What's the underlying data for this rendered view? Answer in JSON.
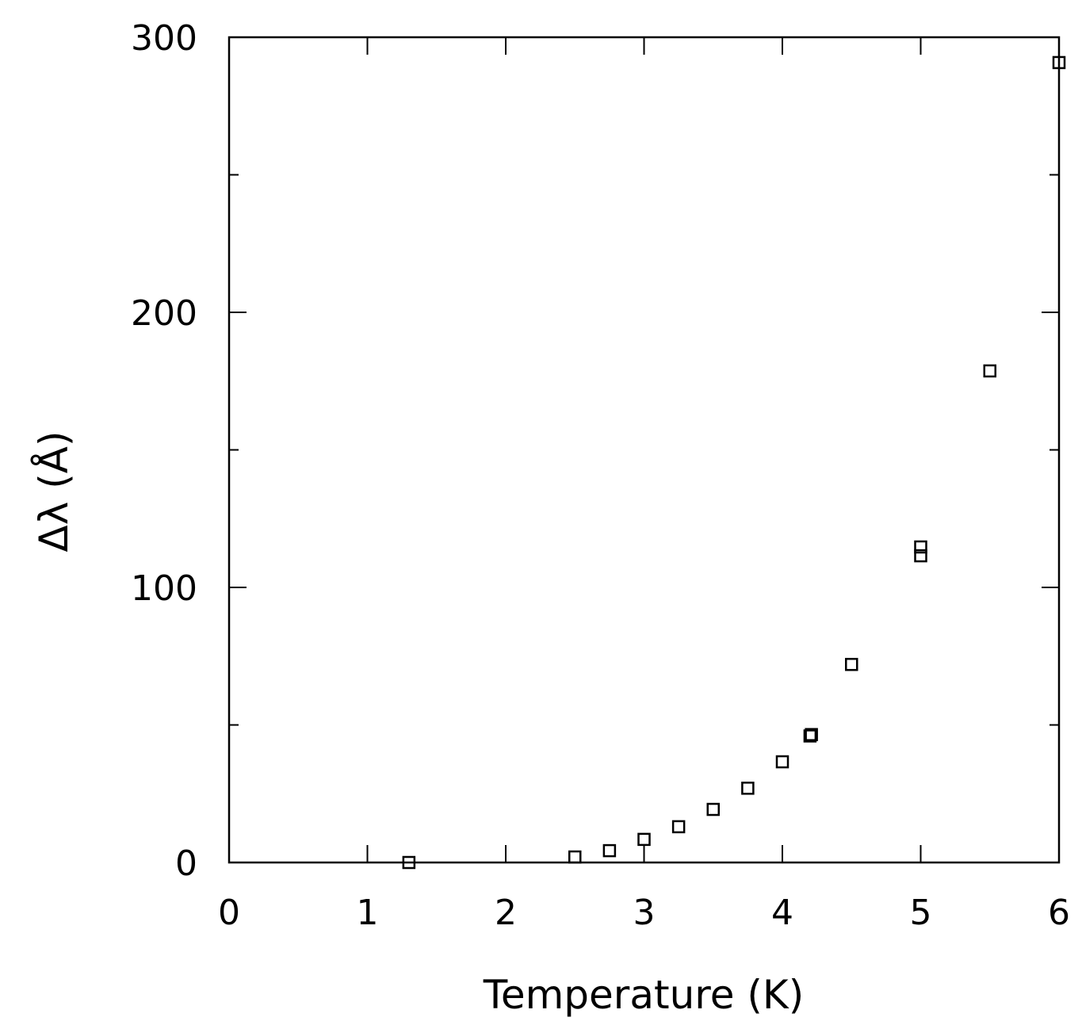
{
  "chart_data": {
    "type": "scatter",
    "title": "",
    "xlabel": "Temperature (K)",
    "ylabel": "Δλ (Å)",
    "xlim": [
      0,
      6
    ],
    "ylim": [
      0,
      300
    ],
    "x_ticks": [
      0,
      1,
      2,
      3,
      4,
      5,
      6
    ],
    "x_tick_labels": [
      "0",
      "1",
      "2",
      "3",
      "4",
      "5",
      "6"
    ],
    "y_ticks": [
      0,
      100,
      200,
      300
    ],
    "y_tick_labels": [
      "0",
      "100",
      "200",
      "300"
    ],
    "y_minor_ticks": [
      50,
      150,
      250
    ],
    "grid": false,
    "marker": "open-square",
    "color": "#000000",
    "series": [
      {
        "x": [
          1.3,
          2.5,
          2.75,
          3.0,
          3.25,
          3.5,
          3.75,
          4.0,
          4.2,
          4.21,
          4.5,
          5.0,
          5.0,
          5.5,
          6.0
        ],
        "y": [
          0,
          2,
          4.3,
          8.4,
          13,
          19.3,
          27,
          36.6,
          46,
          46.5,
          72,
          114.7,
          111.5,
          178.7,
          290.8
        ]
      }
    ]
  }
}
